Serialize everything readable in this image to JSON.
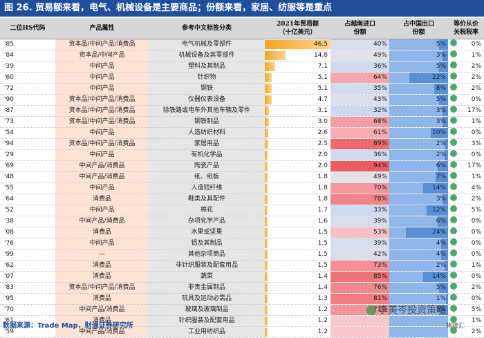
{
  "title": "图 26. 贸易额来看，电气、机械设备是主要商品；份额来看，家居、纺服等是重点",
  "headers": {
    "code": "二位HS代码",
    "attr": "产品属性",
    "cat": "参考中文标签分类",
    "amount": "2021年贸易额\n（十亿美元）",
    "vn": "占越南进口\n份额",
    "cn": "占中国出口\n份额",
    "tax": "等价从价\n关税税率"
  },
  "colors": {
    "title_bg": "#1f4e9b",
    "attr_bg": "#fde3d6",
    "bar": "#f6a623",
    "cn_bg": "#5b8fd4",
    "dot": "#4aa86a"
  },
  "max_amount": 46.5,
  "rows": [
    {
      "code": "'85",
      "attr": "资本品/中间产品/消费品",
      "cat": "电气机械及零部件",
      "amount": "46.5",
      "vn": "40%",
      "cn": "5%",
      "tax": "0%"
    },
    {
      "code": "'84",
      "attr": "资本品/中间产品",
      "cat": "机械设备及其零部件",
      "amount": "14.8",
      "vn": "49%",
      "cn": "3%",
      "tax": "1%"
    },
    {
      "code": "'39",
      "attr": "中间产品",
      "cat": "塑料及其制品",
      "amount": "7.1",
      "vn": "36%",
      "cn": "5%",
      "tax": "2%"
    },
    {
      "code": "'60",
      "attr": "中间产品",
      "cat": "针织物",
      "amount": "5.1",
      "vn": "64%",
      "cn": "22%",
      "tax": "2%"
    },
    {
      "code": "'72",
      "attr": "中间产品",
      "cat": "钢铁",
      "amount": "5.1",
      "vn": "35%",
      "cn": "8%",
      "tax": "2%"
    },
    {
      "code": "'90",
      "attr": "资本品/中间产品/消费品",
      "cat": "仪器仪表设备",
      "amount": "4.7",
      "vn": "43%",
      "cn": "5%",
      "tax": "0%"
    },
    {
      "code": "'87",
      "attr": "资本品/中间产品/消费品",
      "cat": "除铁路或电车外其他车辆及零件",
      "amount": "3.1",
      "vn": "32%",
      "cn": "3%",
      "tax": "17%"
    },
    {
      "code": "'73",
      "attr": "资本品/中间产品/消费品",
      "cat": "钢铁制品",
      "amount": "3.0",
      "vn": "68%",
      "cn": "3%",
      "tax": "1%"
    },
    {
      "code": "'54",
      "attr": "中间产品",
      "cat": "人造纺织材料",
      "amount": "2.6",
      "vn": "61%",
      "cn": "10%",
      "tax": "0%"
    },
    {
      "code": "'94",
      "attr": "资本品/中间产品/消费品",
      "cat": "家居用品",
      "amount": "2.5",
      "vn": "89%",
      "cn": "2%",
      "tax": "3%"
    },
    {
      "code": "'29",
      "attr": "中间产品",
      "cat": "有机化学品",
      "amount": "2.0",
      "vn": "36%",
      "cn": "2%",
      "tax": "0%"
    },
    {
      "code": "'69",
      "attr": "中间产品/消费品",
      "cat": "陶瓷产品",
      "amount": "2.0",
      "vn": "94%",
      "cn": "6%",
      "tax": "17%"
    },
    {
      "code": "'48",
      "attr": "中间产品/消费品",
      "cat": "纸、纸板",
      "amount": "1.8",
      "vn": "49%",
      "cn": "7%",
      "tax": "1%"
    },
    {
      "code": "'55",
      "attr": "中间产品",
      "cat": "人造短纤维",
      "amount": "1.8",
      "vn": "70%",
      "cn": "14%",
      "tax": "4%"
    },
    {
      "code": "'64",
      "attr": "消费品",
      "cat": "鞋类及其配件",
      "amount": "1.8",
      "vn": "78%",
      "cn": "3%",
      "tax": "2%"
    },
    {
      "code": "'52",
      "attr": "中间产品",
      "cat": "棉花",
      "amount": "1.7",
      "vn": "33%",
      "cn": "12%",
      "tax": "5%"
    },
    {
      "code": "'38",
      "attr": "中间产品/消费品",
      "cat": "杂项化学产品",
      "amount": "1.6",
      "vn": "39%",
      "cn": "6%",
      "tax": "0%"
    },
    {
      "code": "'08",
      "attr": "消费品",
      "cat": "水果或坚果",
      "amount": "1.5",
      "vn": "53%",
      "cn": "24%",
      "tax": "0%"
    },
    {
      "code": "'76",
      "attr": "中间产品",
      "cat": "铝及其制品",
      "amount": "1.5",
      "vn": "39%",
      "cn": "4%",
      "tax": "0%"
    },
    {
      "code": "'99",
      "attr": "—",
      "cat": "其他杂项商品",
      "amount": "1.5",
      "vn": "42%",
      "cn": "4%",
      "tax": "0%"
    },
    {
      "code": "'62",
      "attr": "消费品",
      "cat": "非针织服装及配套用品",
      "amount": "1.5",
      "vn": "73%",
      "cn": "2%",
      "tax": "1%"
    },
    {
      "code": "'07",
      "attr": "消费品",
      "cat": "蔬菜",
      "amount": "1.4",
      "vn": "85%",
      "cn": "14%",
      "tax": "0%"
    },
    {
      "code": "'83",
      "attr": "资本品/中间产品/消费品",
      "cat": "非贵金属制品",
      "amount": "1.4",
      "vn": "76%",
      "cn": "5%",
      "tax": "2%"
    },
    {
      "code": "'95",
      "attr": "消费品",
      "cat": "玩具及运动必需品",
      "amount": "1.3",
      "vn": "81%",
      "cn": "1%",
      "tax": "0%"
    },
    {
      "code": "'70",
      "attr": "中间产品/消费品",
      "cat": "玻璃及玻璃制品",
      "amount": "1.2",
      "vn": "71%",
      "cn": "5%",
      "tax": "5%"
    },
    {
      "code": "'61",
      "attr": "消费品",
      "cat": "针织服装及配套用品",
      "amount": "1.2",
      "vn": "",
      "cn": "",
      "tax": "1%"
    },
    {
      "code": "'59",
      "attr": "中间产品/消费品",
      "cat": "工业用纺织品",
      "amount": "1.2",
      "vn": "",
      "cn": "",
      "tax": "2%"
    }
  ],
  "source": "数据来源：Trade Map，财通证券研究所",
  "watermark": "李美岑投资策略",
  "corner": "格隆汇"
}
